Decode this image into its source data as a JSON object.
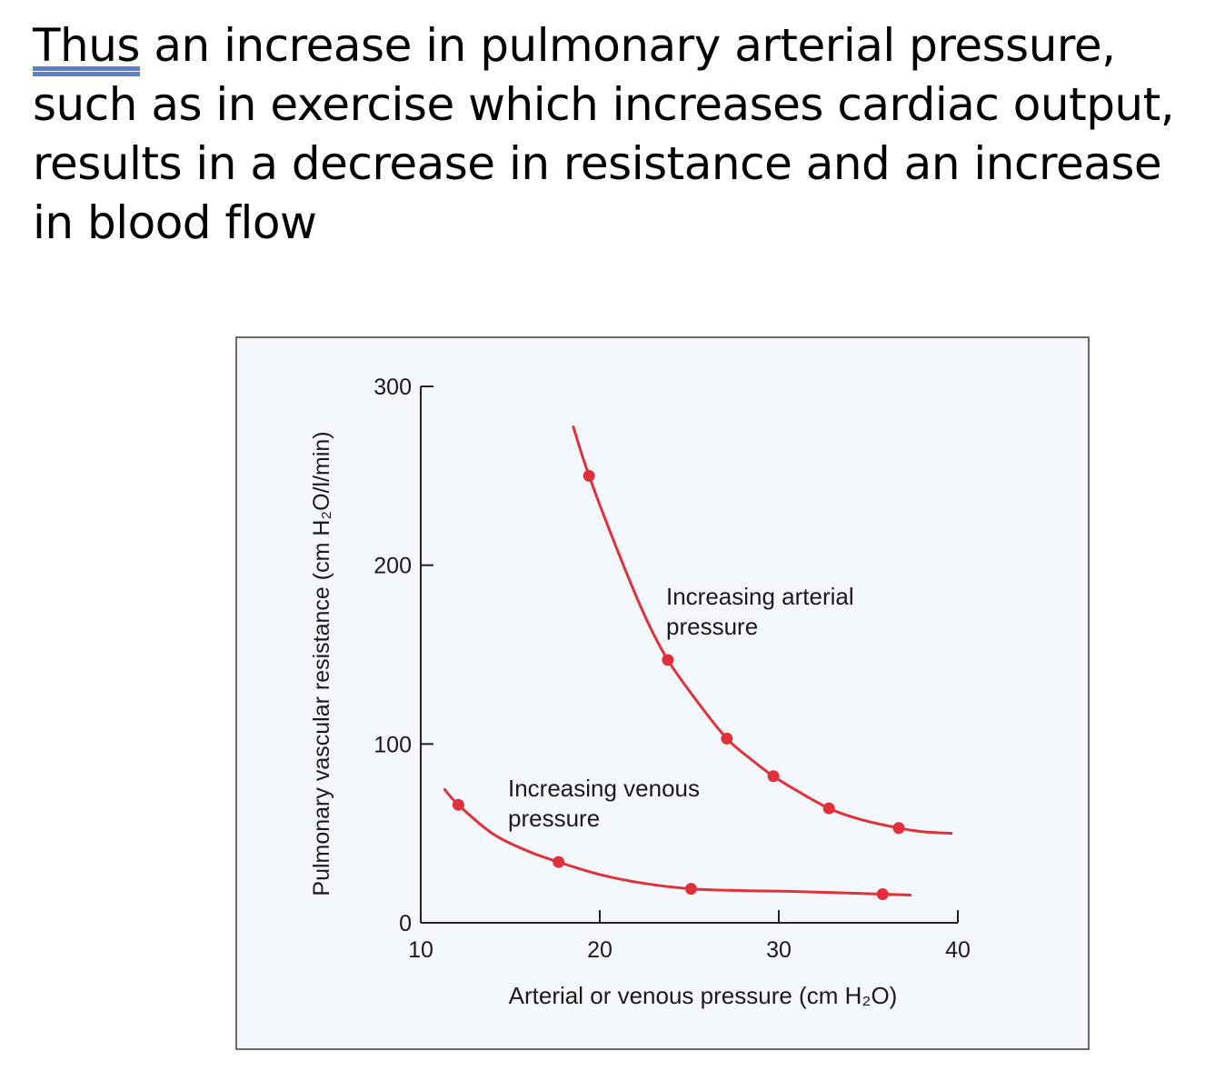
{
  "caption": {
    "line1_first_word": "Thus",
    "line1_rest": " an increase in pulmonary arterial pressure,",
    "line2": "such as in exercise which increases cardiac output,",
    "line3": "results in a decrease in resistance and an increase",
    "line4": "in blood flow"
  },
  "chart_data": {
    "type": "line",
    "xlabel": "Arterial or venous pressure (cm H₂O)",
    "ylabel": "Pulmonary vascular resistance (cm H₂O/l/min)",
    "xlim": [
      10,
      40
    ],
    "ylim": [
      0,
      300
    ],
    "x_ticks": [
      10,
      20,
      30,
      40
    ],
    "y_ticks": [
      0,
      100,
      200,
      300
    ],
    "grid": false,
    "series": [
      {
        "name": "Increasing arterial pressure",
        "label_lines": [
          "Increasing arterial",
          "pressure"
        ],
        "color": "#e0303a",
        "points": [
          [
            19.4,
            250
          ],
          [
            23.8,
            147
          ],
          [
            27.1,
            103
          ],
          [
            29.7,
            82
          ],
          [
            32.8,
            64
          ],
          [
            36.7,
            53
          ]
        ],
        "curve": [
          [
            18.5,
            278
          ],
          [
            19.4,
            250
          ],
          [
            21,
            208
          ],
          [
            22.5,
            172
          ],
          [
            23.8,
            147
          ],
          [
            25.5,
            123
          ],
          [
            27.1,
            103
          ],
          [
            28.5,
            91
          ],
          [
            29.7,
            82
          ],
          [
            31,
            74
          ],
          [
            32.8,
            64
          ],
          [
            34.5,
            58
          ],
          [
            36.7,
            53
          ],
          [
            38,
            51
          ],
          [
            39.7,
            50
          ]
        ]
      },
      {
        "name": "Increasing venous pressure",
        "label_lines": [
          "Increasing venous",
          "pressure"
        ],
        "color": "#e0303a",
        "points": [
          [
            12.1,
            66
          ],
          [
            17.7,
            34
          ],
          [
            25.1,
            19
          ],
          [
            35.8,
            16
          ]
        ],
        "curve": [
          [
            11.3,
            75
          ],
          [
            12.1,
            66
          ],
          [
            14,
            50
          ],
          [
            16,
            40
          ],
          [
            17.7,
            34
          ],
          [
            20,
            27
          ],
          [
            22.5,
            22
          ],
          [
            25.1,
            19
          ],
          [
            28,
            18
          ],
          [
            31,
            17.5
          ],
          [
            35.8,
            16
          ],
          [
            37.4,
            15.5
          ]
        ]
      }
    ]
  }
}
